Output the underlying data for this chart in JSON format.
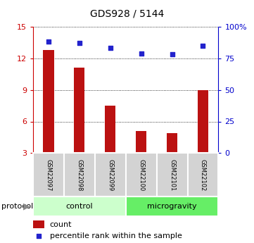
{
  "title": "GDS928 / 5144",
  "samples": [
    "GSM22097",
    "GSM22098",
    "GSM22099",
    "GSM22100",
    "GSM22101",
    "GSM22102"
  ],
  "bar_values": [
    12.8,
    11.1,
    7.5,
    5.1,
    4.9,
    9.0
  ],
  "percentile_values": [
    88,
    87,
    83,
    79,
    78,
    85
  ],
  "bar_color": "#bb1111",
  "dot_color": "#2222cc",
  "ylim_left": [
    3,
    15
  ],
  "yticks_left": [
    3,
    6,
    9,
    12,
    15
  ],
  "ylim_right": [
    0,
    100
  ],
  "yticks_right": [
    0,
    25,
    50,
    75,
    100
  ],
  "ytick_labels_right": [
    "0",
    "25",
    "50",
    "75",
    "100%"
  ],
  "groups": [
    {
      "label": "control",
      "indices": [
        0,
        1,
        2
      ],
      "color": "#ccffcc"
    },
    {
      "label": "microgravity",
      "indices": [
        3,
        4,
        5
      ],
      "color": "#66ee66"
    }
  ],
  "protocol_label": "protocol",
  "legend_count": "count",
  "legend_percentile": "percentile rank within the sample",
  "grid_color": "black",
  "background_color": "#ffffff",
  "tick_color_left": "#cc0000",
  "tick_color_right": "#0000cc",
  "title_fontsize": 10,
  "bar_width": 0.35,
  "label_fontsize": 6,
  "group_fontsize": 8,
  "legend_fontsize": 8
}
